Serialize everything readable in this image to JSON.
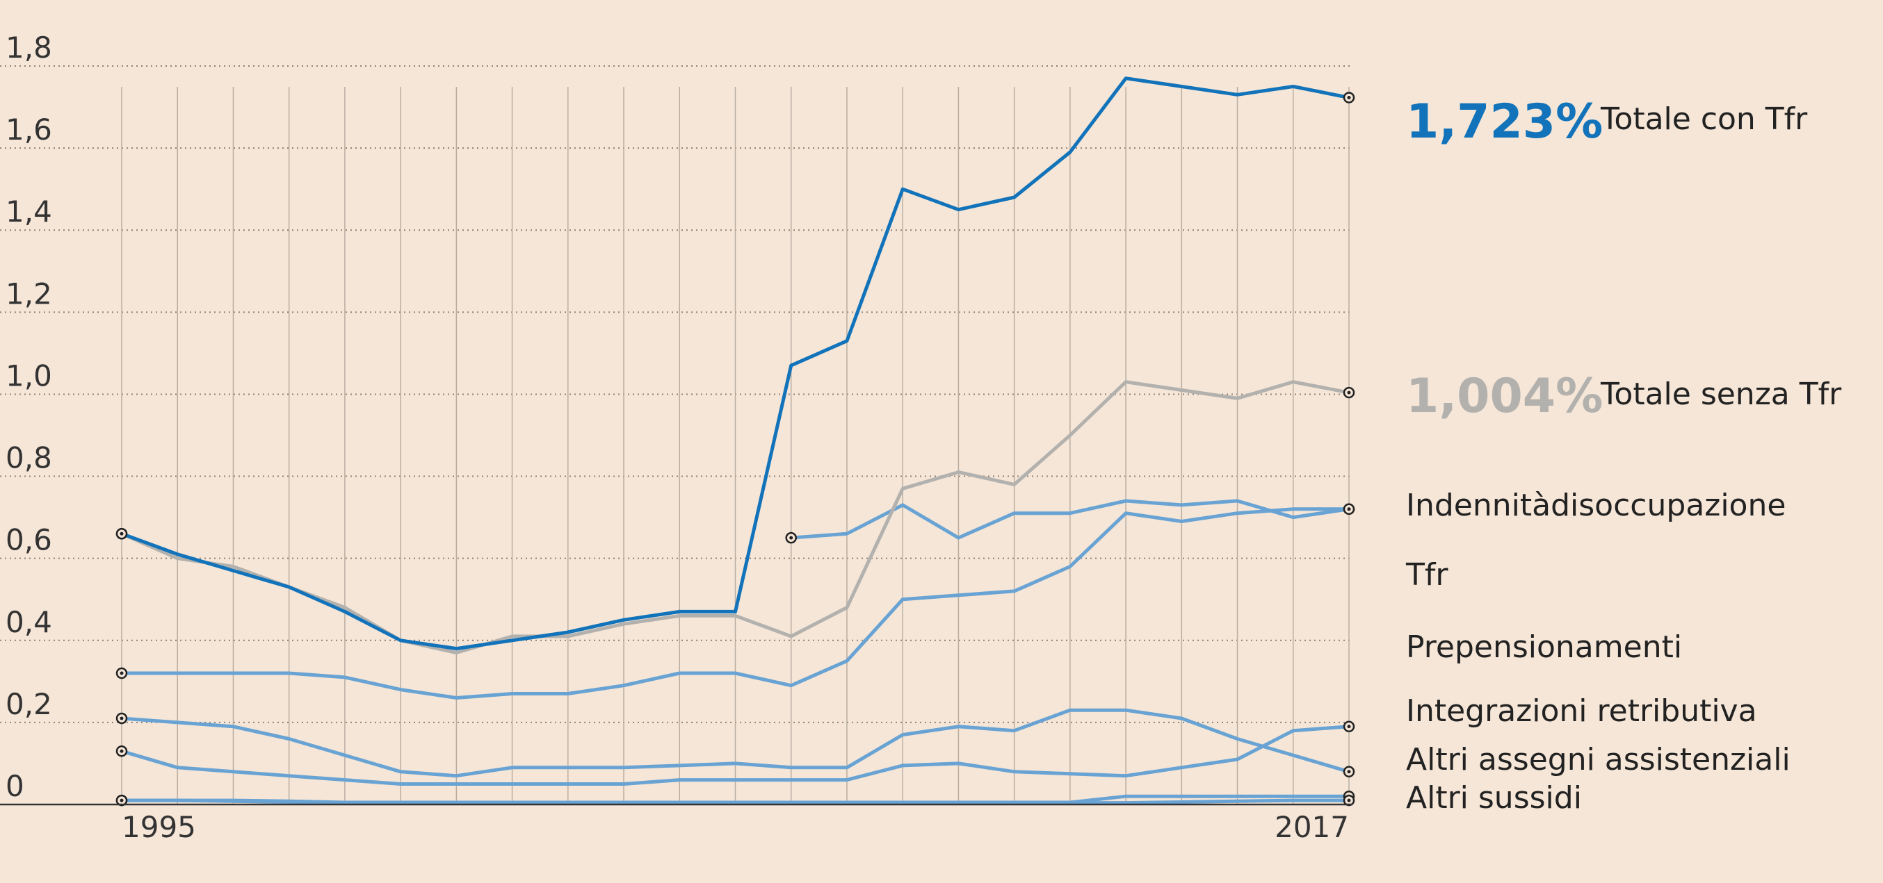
{
  "chart_data": {
    "type": "line",
    "x": [
      1995,
      1996,
      1997,
      1998,
      1999,
      2000,
      2001,
      2002,
      2003,
      2004,
      2005,
      2006,
      2007,
      2008,
      2009,
      2010,
      2011,
      2012,
      2013,
      2014,
      2015,
      2016,
      2017
    ],
    "ylim": [
      0,
      1.8
    ],
    "yticks": [
      0,
      0.2,
      0.4,
      0.6,
      0.8,
      1.0,
      1.2,
      1.4,
      1.6,
      1.8
    ],
    "ytick_labels": [
      "0",
      "0,2",
      "0,4",
      "0,6",
      "0,8",
      "1,0",
      "1,2",
      "1,4",
      "1,6",
      "1,8"
    ],
    "xtick_labels": [
      "1995",
      "2017"
    ],
    "grid": "horizontal dotted, vertical per year",
    "series": [
      {
        "name": "Totale con Tfr",
        "color": "#1273ba",
        "highlight_value": "1,723%",
        "values": [
          0.66,
          0.61,
          0.57,
          0.53,
          0.47,
          0.4,
          0.38,
          0.4,
          0.42,
          0.45,
          0.47,
          0.47,
          1.07,
          1.13,
          1.5,
          1.45,
          1.48,
          1.59,
          1.77,
          1.75,
          1.73,
          1.75,
          1.723
        ]
      },
      {
        "name": "Totale senza Tfr",
        "color": "#b3b1ae",
        "highlight_value": "1,004%",
        "values": [
          0.66,
          0.6,
          0.58,
          0.53,
          0.48,
          0.4,
          0.37,
          0.41,
          0.41,
          0.44,
          0.46,
          0.46,
          0.41,
          0.48,
          0.77,
          0.81,
          0.78,
          0.9,
          1.03,
          1.01,
          0.99,
          1.03,
          1.004
        ]
      },
      {
        "name": "Indennità disoccupazione",
        "color": "#68a3d4",
        "values": [
          null,
          null,
          null,
          null,
          null,
          null,
          null,
          null,
          null,
          null,
          null,
          null,
          0.65,
          0.66,
          0.73,
          0.65,
          0.71,
          0.71,
          0.74,
          0.73,
          0.74,
          0.7,
          0.72
        ]
      },
      {
        "name": "Tfr",
        "color": "#68a3d4",
        "values": [
          0.32,
          0.32,
          0.32,
          0.32,
          0.31,
          0.28,
          0.26,
          0.27,
          0.27,
          0.29,
          0.32,
          0.32,
          0.29,
          0.35,
          0.5,
          0.51,
          0.52,
          0.58,
          0.71,
          0.69,
          0.71,
          0.72,
          0.72
        ]
      },
      {
        "name": "Prepensionamenti",
        "color": "#68a3d4",
        "values": [
          0.21,
          0.2,
          0.19,
          0.16,
          0.12,
          0.08,
          0.07,
          0.09,
          0.09,
          0.09,
          0.095,
          0.1,
          0.09,
          0.09,
          0.17,
          0.19,
          0.18,
          0.23,
          0.23,
          0.21,
          0.16,
          0.12,
          0.08
        ]
      },
      {
        "name": "Integrazioni retributiva",
        "color": "#68a3d4",
        "values": [
          0.13,
          0.09,
          0.08,
          0.07,
          0.06,
          0.05,
          0.05,
          0.05,
          0.05,
          0.05,
          0.06,
          0.06,
          0.06,
          0.06,
          0.095,
          0.1,
          0.08,
          0.075,
          0.07,
          0.09,
          0.11,
          0.18,
          0.19
        ]
      },
      {
        "name": "Altri assegni assistenziali",
        "color": "#68a3d4",
        "values": [
          0.01,
          0.01,
          0.01,
          0.008,
          0.005,
          0.005,
          0.005,
          0.005,
          0.005,
          0.005,
          0.005,
          0.005,
          0.005,
          0.005,
          0.005,
          0.005,
          0.005,
          0.005,
          0.02,
          0.02,
          0.02,
          0.02,
          0.02
        ]
      },
      {
        "name": "Altri sussidi",
        "color": "#68a3d4",
        "values": [
          0.01,
          0.01,
          0.008,
          0.006,
          0.004,
          0.004,
          0.004,
          0.004,
          0.004,
          0.004,
          0.004,
          0.004,
          0.004,
          0.004,
          0.004,
          0.004,
          0.004,
          0.004,
          0.004,
          0.006,
          0.008,
          0.01,
          0.01
        ]
      }
    ],
    "legend": {
      "placement": "right",
      "entries": [
        {
          "value": "1,723%",
          "label": "Totale con Tfr",
          "color": "#1273ba"
        },
        {
          "value": "1,004%",
          "label": "Totale senza Tfr",
          "color": "#b3b1ae"
        },
        {
          "label": "Indennitàdisoccupazione"
        },
        {
          "label": "Tfr"
        },
        {
          "label": "Prepensionamenti"
        },
        {
          "label": "Integrazioni retributiva"
        },
        {
          "label": "Altri assegni assistenziali"
        },
        {
          "label": "Altri sussidi"
        }
      ]
    }
  }
}
